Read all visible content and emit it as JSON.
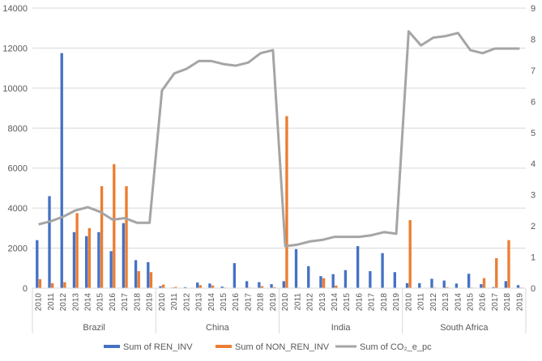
{
  "chart_data": {
    "type": "bar",
    "title": "",
    "groups": [
      {
        "name": "Brazil",
        "years": [
          "2010",
          "2011",
          "2012",
          "2013",
          "2014",
          "2015",
          "2016",
          "2017",
          "2018",
          "2019"
        ]
      },
      {
        "name": "China",
        "years": [
          "2010",
          "2011",
          "2012",
          "2013",
          "2014",
          "2015",
          "2016",
          "2017",
          "2018",
          "2019"
        ]
      },
      {
        "name": "India",
        "years": [
          "2010",
          "2011",
          "2012",
          "2013",
          "2014",
          "2015",
          "2016",
          "2017",
          "2018",
          "2019"
        ]
      },
      {
        "name": "South Africa",
        "years": [
          "2010",
          "2011",
          "2012",
          "2013",
          "2014",
          "2015",
          "2016",
          "2017",
          "2018",
          "2019"
        ]
      }
    ],
    "series": [
      {
        "name": "Sum of REN_INV",
        "kind": "bar",
        "axis": "left",
        "color": "#4472C4",
        "values": [
          2400,
          4600,
          11750,
          2800,
          2600,
          2800,
          1850,
          3250,
          1400,
          1300,
          100,
          30,
          50,
          280,
          230,
          80,
          1250,
          350,
          300,
          200,
          350,
          1950,
          1100,
          600,
          700,
          900,
          2100,
          850,
          1750,
          800,
          250,
          250,
          470,
          380,
          230,
          720,
          200,
          50,
          350,
          150
        ]
      },
      {
        "name": "Sum of NON_REN_INV",
        "kind": "bar",
        "axis": "left",
        "color": "#ED7D31",
        "values": [
          450,
          250,
          300,
          3750,
          3000,
          5100,
          6200,
          5100,
          850,
          800,
          180,
          60,
          20,
          150,
          130,
          30,
          10,
          30,
          100,
          50,
          8600,
          30,
          20,
          500,
          130,
          20,
          0,
          20,
          20,
          10,
          3400,
          20,
          30,
          50,
          20,
          30,
          500,
          1500,
          2400,
          30
        ]
      },
      {
        "name": "Sum of CO₂_e_pc",
        "kind": "line",
        "axis": "right",
        "color": "#A5A5A5",
        "values": [
          2.05,
          2.15,
          2.3,
          2.5,
          2.6,
          2.45,
          2.2,
          2.25,
          2.1,
          2.1,
          6.35,
          6.9,
          7.05,
          7.3,
          7.3,
          7.2,
          7.15,
          7.25,
          7.55,
          7.65,
          1.35,
          1.4,
          1.5,
          1.55,
          1.65,
          1.65,
          1.65,
          1.7,
          1.8,
          1.75,
          8.25,
          7.8,
          8.05,
          8.1,
          8.2,
          7.65,
          7.55,
          7.7,
          7.7,
          7.7
        ]
      }
    ],
    "y_left": {
      "min": 0,
      "max": 14000,
      "ticks": [
        "0",
        "2000",
        "4000",
        "6000",
        "8000",
        "10000",
        "12000",
        "14000"
      ]
    },
    "y_right": {
      "min": 0,
      "max": 9,
      "ticks": [
        "0",
        "1",
        "2",
        "3",
        "4",
        "5",
        "6",
        "7",
        "8",
        "9"
      ]
    },
    "grid": true,
    "legend_position": "bottom"
  }
}
